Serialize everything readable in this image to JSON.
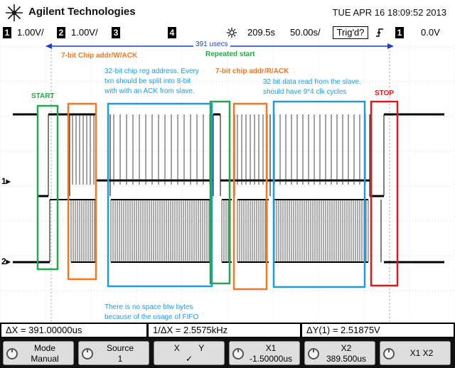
{
  "header": {
    "brand": "Agilent Technologies",
    "datetime": "TUE APR 16 18:09:52 2013"
  },
  "status": {
    "ch1_num": "1",
    "ch1_scale": "1.00V/",
    "ch2_num": "2",
    "ch2_scale": "1.00V/",
    "ch3_num": "3",
    "ch4_num": "4",
    "trigger_pos": "209.5s",
    "timebase": "50.00s/",
    "trigger_state": "Trig'd?",
    "trigger_slope_icon": "rising-edge-icon",
    "trigger_ch": "1",
    "trigger_level": "0.0V"
  },
  "screen": {
    "span_label": "391 usecs",
    "annotations": {
      "chip_addr_w": "7-bit Chip addr/W/ACK",
      "repeated_start": "Repeated start",
      "reg_addr_l1": "32-bit chip reg address. Every",
      "reg_addr_l2": "txn should be split into 8-bit",
      "reg_addr_l3": "with with an ACK from slave.",
      "chip_addr_r": "7-bit chip addr/R/ACK",
      "data_l1": "32 bit data read from the slave.",
      "data_l2": "should have 9*4 clk cycles",
      "start": "START",
      "stop": "STOP",
      "fifo_l1": "There is no space btw bytes",
      "fifo_l2": "because of the usage of FIFO"
    },
    "colors": {
      "start_box": "#21a84a",
      "addr_box": "#f07820",
      "data_box": "#1e9be0",
      "stop_box": "#e01818",
      "span_arrow": "#1f3fbf"
    }
  },
  "measurements": {
    "delta_x": "ΔX = 391.00000us",
    "inv_delta_x": "1/ΔX = 2.5575kHz",
    "delta_y": "ΔY(1) = 2.51875V"
  },
  "softkeys": [
    {
      "line1": "Mode",
      "line2": "Manual",
      "knob": true
    },
    {
      "line1": "Source",
      "line2": "1",
      "knob": true
    },
    {
      "line1": "X        Y",
      "line2": "✓",
      "knob": false
    },
    {
      "line1": "X1",
      "line2": "-1.50000us",
      "knob": true
    },
    {
      "line1": "X2",
      "line2": "389.500us",
      "knob": true
    },
    {
      "line1": "X1 X2",
      "line2": "",
      "knob": true
    }
  ]
}
